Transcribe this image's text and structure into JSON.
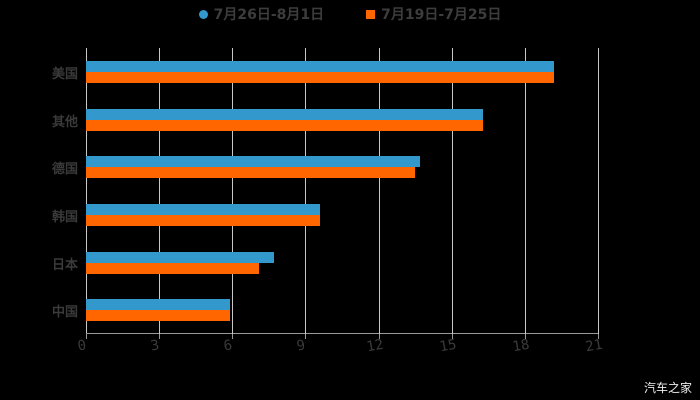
{
  "chart_data": {
    "type": "bar",
    "orientation": "horizontal",
    "title": "",
    "categories": [
      "美国",
      "其他",
      "德国",
      "韩国",
      "日本",
      "中国"
    ],
    "series": [
      {
        "name": "7月26日-8月1日",
        "color": "#3399cc",
        "values": [
          19.2,
          16.3,
          13.7,
          9.6,
          7.7,
          5.9
        ]
      },
      {
        "name": "7月19日-7月25日",
        "color": "#ff6600",
        "values": [
          19.2,
          16.3,
          13.5,
          9.6,
          7.1,
          5.9
        ]
      }
    ],
    "xlim": [
      0,
      21
    ],
    "xticks": [
      "0",
      "3",
      "6",
      "9",
      "12",
      "15",
      "18",
      "21"
    ],
    "xlabel": "",
    "ylabel": "",
    "grid": true,
    "legend_position": "top"
  },
  "legend": [
    {
      "label": "7月26日-8月1日",
      "color": "#3399cc",
      "shape": "circle"
    },
    {
      "label": "7月19日-7月25日",
      "color": "#ff6600",
      "shape": "square"
    }
  ],
  "watermark": "汽车之家"
}
